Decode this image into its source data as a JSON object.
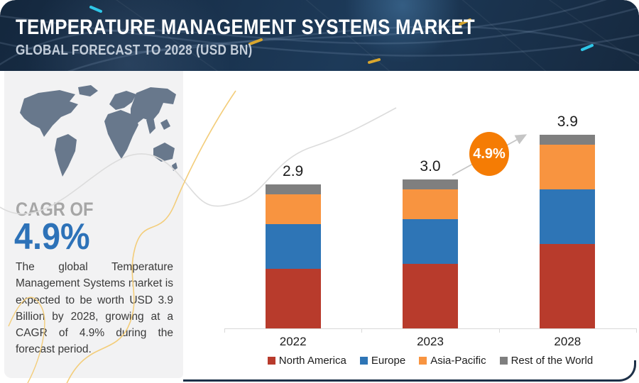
{
  "header": {
    "title": "TEMPERATURE MANAGEMENT SYSTEMS MARKET",
    "subtitle": "GLOBAL FORECAST TO 2028 (USD BN)"
  },
  "sidebar": {
    "cagr_label": "CAGR OF",
    "cagr_value": "4.9%",
    "description": "The global Temperature Management Systems market is expected to be worth USD  3.9 Billion by 2028, growing at a CAGR of 4.9% during the forecast period."
  },
  "chart_data": {
    "type": "bar",
    "stacked": true,
    "title": "Temperature Management Systems Market",
    "unit": "USD BN",
    "categories": [
      "2022",
      "2023",
      "2028"
    ],
    "series": [
      {
        "name": "North America",
        "color": "#b83b2c",
        "values": [
          1.2,
          1.3,
          1.7
        ]
      },
      {
        "name": "Europe",
        "color": "#2e75b6",
        "values": [
          0.9,
          0.9,
          1.1
        ]
      },
      {
        "name": "Asia-Pacific",
        "color": "#f89440",
        "values": [
          0.6,
          0.6,
          0.9
        ]
      },
      {
        "name": "Rest of the World",
        "color": "#7f7f7f",
        "values": [
          0.2,
          0.2,
          0.2
        ]
      }
    ],
    "totals": [
      "2.9",
      "3.0",
      "3.9"
    ],
    "growth_badge": {
      "label": "4.9%",
      "color": "#f57c04"
    },
    "legend_position": "bottom",
    "grid": false,
    "ylim": [
      0,
      4.2
    ]
  },
  "colors": {
    "header_navy": "#16293f",
    "sidebar_bg": "#f2f2f3",
    "map_fill": "#68788c",
    "cagr_blue": "#2d72b8",
    "axis": "#d9d9d9",
    "badge_orange": "#f57c04"
  }
}
